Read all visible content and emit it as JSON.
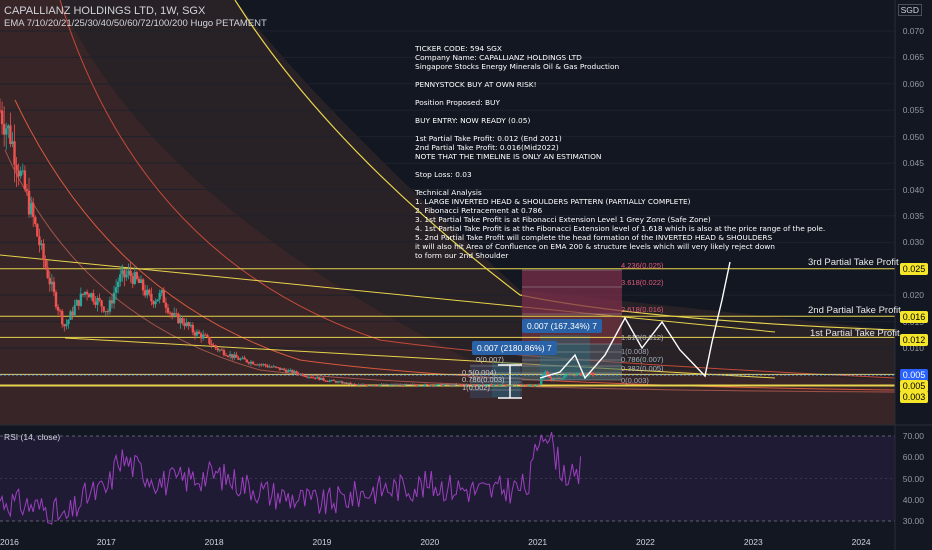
{
  "header": {
    "title": "CAPALLIANZ HOLDINGS LTD, 1W, SGX",
    "indicator": "EMA 7/10/20/21/25/30/40/50/60/72/100/200 Hugo PETAMENT",
    "currency": "SGD"
  },
  "rsi": {
    "label": "RSI (14, close)",
    "ticks": [
      "70.00",
      "60.00",
      "50.00",
      "40.00",
      "30.00"
    ]
  },
  "price_axis_ticks": [
    "0.070",
    "0.065",
    "0.060",
    "0.055",
    "0.050",
    "0.045",
    "0.040",
    "0.035",
    "0.030",
    "0.025",
    "0.020",
    "0.015",
    "0.010"
  ],
  "time_axis_ticks": [
    "2016",
    "2017",
    "2018",
    "2019",
    "2020",
    "2021",
    "2022",
    "2023",
    "2024"
  ],
  "price_tags": [
    {
      "label": "0.025",
      "color": "#f5e62a",
      "text": "#000000"
    },
    {
      "label": "0.016",
      "color": "#f5e62a",
      "text": "#000000"
    },
    {
      "label": "0.012",
      "color": "#f5e62a",
      "text": "#000000"
    },
    {
      "label": "0.005",
      "color": "#2962ff",
      "text": "#ffffff"
    },
    {
      "label": "0.005",
      "color": "#f5e62a",
      "text": "#000000"
    },
    {
      "label": "0.003",
      "color": "#f5e62a",
      "text": "#000000"
    }
  ],
  "targets": {
    "tp3": "3rd Partial Take Profit",
    "tp2": "2nd Partial Take Profit",
    "tp1": "1st Partial Take Profit"
  },
  "note_lines": [
    "TICKER CODE: 594 SGX",
    "Company Name: CAPALLIANZ HOLDINGS LTD",
    "Singapore Stocks Energy Minerals Oil & Gas Production",
    "",
    "PENNYSTOCK BUY AT OWN RISK!",
    "",
    "Position Proposed: BUY",
    "",
    "BUY ENTRY: NOW READY (0.05)",
    "",
    "1st Partial Take Profit: 0.012 (End 2021)",
    "2nd Partial Take Profit: 0.016(Mid2022)",
    "NOTE THAT THE TIMELINE IS ONLY AN ESTIMATION",
    "",
    "Stop Loss: 0.03",
    "",
    "Technical Analysis",
    "1. LARGE INVERTED HEAD & SHOULDERS PATTERN (PARTIALLY COMPLETE)",
    "2. Fibonacci Retracement at 0.786",
    "3. 1st Partial Take Profit is at Fibonacci Extension Level 1 Grey Zone (Safe Zone)",
    "4. 1st Partial Take Profit is at the Fibonacci Extension level of 1.618 which is also at the price range of the pole.",
    "5. 2nd Partial Take Profit will complete the head formation of the INVERTED HEAD & SHOULDERS",
    "it will also hit Area of Confluence on EMA 200 & structure levels which will very likely reject down",
    "to form our 2nd Shoulder"
  ],
  "measure_badges": [
    "0.007 (167.34%) 7",
    "0.007 (2180.86%) 7"
  ],
  "fib_ext_labels": [
    "4.236(0.025)",
    "3.618(0.022)",
    "2.618(0.016)",
    "1.618(0.012)",
    "1(0.008)",
    "0.786(0.007)",
    "0.382(0.005)",
    "0(0.003)"
  ],
  "fib_ret_labels": [
    "0(0.007)",
    "0.5(0.004)",
    "0.786(0.003)",
    "1(0.002)"
  ],
  "chart_data": {
    "type": "candlestick",
    "x_range": [
      2016,
      2024.3
    ],
    "y_range": [
      0.0,
      0.07
    ],
    "weekly_close_approx": {
      "x": [
        2016.0,
        2016.1,
        2016.2,
        2016.3,
        2016.4,
        2016.5,
        2016.6,
        2016.7,
        2016.8,
        2016.9,
        2017.0,
        2017.1,
        2017.2,
        2017.3,
        2017.4,
        2017.5,
        2017.6,
        2017.7,
        2017.8,
        2017.9,
        2018.0,
        2018.2,
        2018.4,
        2018.6,
        2018.8,
        2019.0,
        2019.3,
        2019.6,
        2019.9,
        2020.2,
        2020.5,
        2020.8,
        2021.0,
        2021.05,
        2021.1,
        2021.3,
        2021.5
      ],
      "y": [
        0.055,
        0.05,
        0.042,
        0.035,
        0.027,
        0.02,
        0.014,
        0.018,
        0.021,
        0.019,
        0.017,
        0.023,
        0.024,
        0.022,
        0.019,
        0.02,
        0.016,
        0.015,
        0.013,
        0.012,
        0.01,
        0.008,
        0.007,
        0.006,
        0.005,
        0.004,
        0.003,
        0.003,
        0.003,
        0.003,
        0.003,
        0.003,
        0.003,
        0.006,
        0.004,
        0.005,
        0.005
      ]
    },
    "levels": [
      {
        "name": "3rd Partial Take Profit",
        "y": 0.025
      },
      {
        "name": "2nd Partial Take Profit",
        "y": 0.016
      },
      {
        "name": "1st Partial Take Profit",
        "y": 0.012
      },
      {
        "name": "0.005",
        "y": 0.005
      },
      {
        "name": "0.003",
        "y": 0.003
      }
    ],
    "projection": {
      "x": [
        2021.5,
        2021.7,
        2021.9,
        2022.1,
        2022.3,
        2022.5,
        2022.7,
        2022.9,
        2023.0,
        2023.2
      ],
      "y": [
        0.005,
        0.008,
        0.01,
        0.016,
        0.011,
        0.016,
        0.01,
        0.005,
        0.012,
        0.025
      ]
    },
    "rsi_values": {
      "x": [
        2016.0,
        2016.5,
        2016.6,
        2016.8,
        2017.0,
        2017.1,
        2017.5,
        2018.0,
        2018.5,
        2019.0,
        2019.5,
        2020.0,
        2020.5,
        2020.9,
        2021.0,
        2021.05,
        2021.2,
        2021.35,
        2021.4
      ],
      "y": [
        40,
        35,
        30,
        42,
        45,
        60,
        48,
        52,
        43,
        38,
        45,
        47,
        44,
        46,
        70,
        75,
        55,
        48,
        58
      ]
    }
  }
}
